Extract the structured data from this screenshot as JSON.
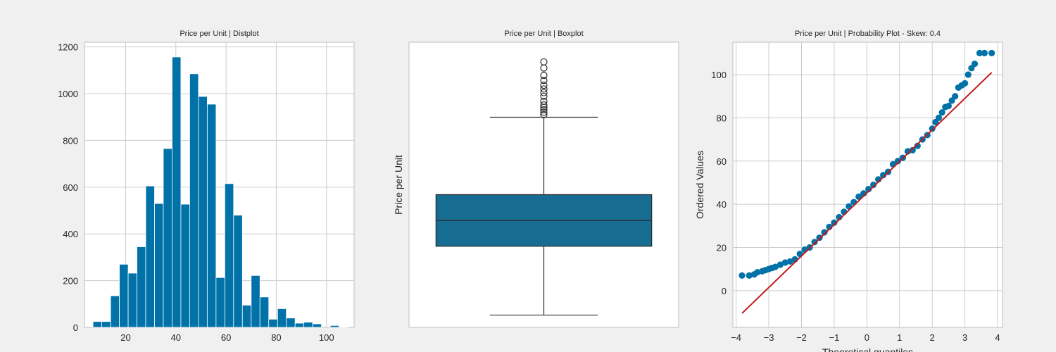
{
  "colors": {
    "background": "#f0f0f0",
    "plot_bg": "#ffffff",
    "grid": "#cccccc",
    "bar": "#0072a8",
    "bar_edge": "#ffffff",
    "box_fill": "#176d91",
    "box_line": "#2b2b2b",
    "point": "#0072a8",
    "fit_line": "#c21a1a"
  },
  "chart_data": [
    {
      "type": "bar",
      "title": "Price per Unit | Distplot",
      "xlabel": "",
      "ylabel": "",
      "xlim": [
        3.6,
        111
      ],
      "ylim": [
        0,
        1220
      ],
      "grid": true,
      "bin_edges": [
        7,
        10.5,
        14,
        17.5,
        21,
        24.5,
        28,
        31.5,
        35,
        38.5,
        42,
        45.5,
        49,
        52.5,
        56,
        59.5,
        63,
        66.5,
        70,
        73.5,
        77,
        80.5,
        84,
        87.5,
        91,
        94.5,
        98,
        101.5,
        105,
        108.5
      ],
      "values": [
        25,
        25,
        135,
        270,
        232,
        345,
        605,
        530,
        765,
        1157,
        527,
        1085,
        988,
        955,
        213,
        615,
        480,
        95,
        222,
        130,
        35,
        80,
        40,
        18,
        22,
        15,
        0,
        8,
        2
      ],
      "x_ticks": [
        20,
        40,
        60,
        80,
        100
      ],
      "y_ticks": [
        0,
        200,
        400,
        600,
        800,
        1000,
        1200
      ]
    },
    {
      "type": "box",
      "title": "Price per Unit | Boxplot",
      "xlabel": "",
      "ylabel": "Price per Unit",
      "ylim": [
        2,
        118
      ],
      "grid": false,
      "whisker_low": 7,
      "q1": 35,
      "median": 45.5,
      "q3": 56,
      "whisker_high": 87.5,
      "outliers": [
        88.5,
        89.5,
        90.5,
        91.5,
        92.5,
        94,
        96,
        97.5,
        99,
        100.5,
        102.5,
        104.5,
        107.5,
        110
      ]
    },
    {
      "type": "scatter",
      "title": "Price per Unit | Probability Plot - Skew: 0.4",
      "xlabel": "Theoretical quantiles",
      "ylabel": "Ordered Values",
      "xlim": [
        -4.1,
        4.15
      ],
      "ylim": [
        -17,
        115
      ],
      "grid": true,
      "x_ticks": [
        -4,
        -3,
        -2,
        -1,
        0,
        1,
        2,
        3,
        4
      ],
      "y_ticks": [
        0,
        20,
        40,
        60,
        80,
        100
      ],
      "fit_line": {
        "x": [
          -3.82,
          3.82
        ],
        "y": [
          -10.5,
          101
        ]
      },
      "series": [
        {
          "x": [
            -3.82,
            -3.6,
            -3.45,
            -3.35,
            -3.2,
            -3.1,
            -3.0,
            -2.9,
            -2.8,
            -2.65,
            -2.5,
            -2.35,
            -2.2,
            -2.05,
            -1.9,
            -1.75,
            -1.6,
            -1.45,
            -1.3,
            -1.15,
            -1.0,
            -0.85,
            -0.7,
            -0.55,
            -0.4,
            -0.25,
            -0.1,
            0.05,
            0.2,
            0.35,
            0.5,
            0.65,
            0.8,
            0.95,
            1.1,
            1.25,
            1.4,
            1.55,
            1.7,
            1.85,
            2.0,
            2.1,
            2.2,
            2.3,
            2.4,
            2.5,
            2.6,
            2.7,
            2.8,
            2.9,
            3.0,
            3.1,
            3.2,
            3.3,
            3.45,
            3.6,
            3.82
          ],
          "y": [
            7,
            7,
            7.5,
            8.5,
            9,
            9.5,
            10,
            10.5,
            11,
            12,
            13,
            13.5,
            14.5,
            17,
            19,
            20,
            22.5,
            24.5,
            27,
            29.5,
            31.5,
            34,
            36.5,
            39,
            41,
            43.5,
            45,
            47,
            49,
            51.5,
            53.5,
            55,
            58.5,
            60,
            61.5,
            64.5,
            65,
            67,
            70,
            72,
            75,
            78,
            80,
            82.5,
            85,
            85.5,
            88,
            90,
            94,
            95,
            96,
            100,
            103,
            105,
            110,
            110,
            110
          ]
        }
      ]
    }
  ]
}
